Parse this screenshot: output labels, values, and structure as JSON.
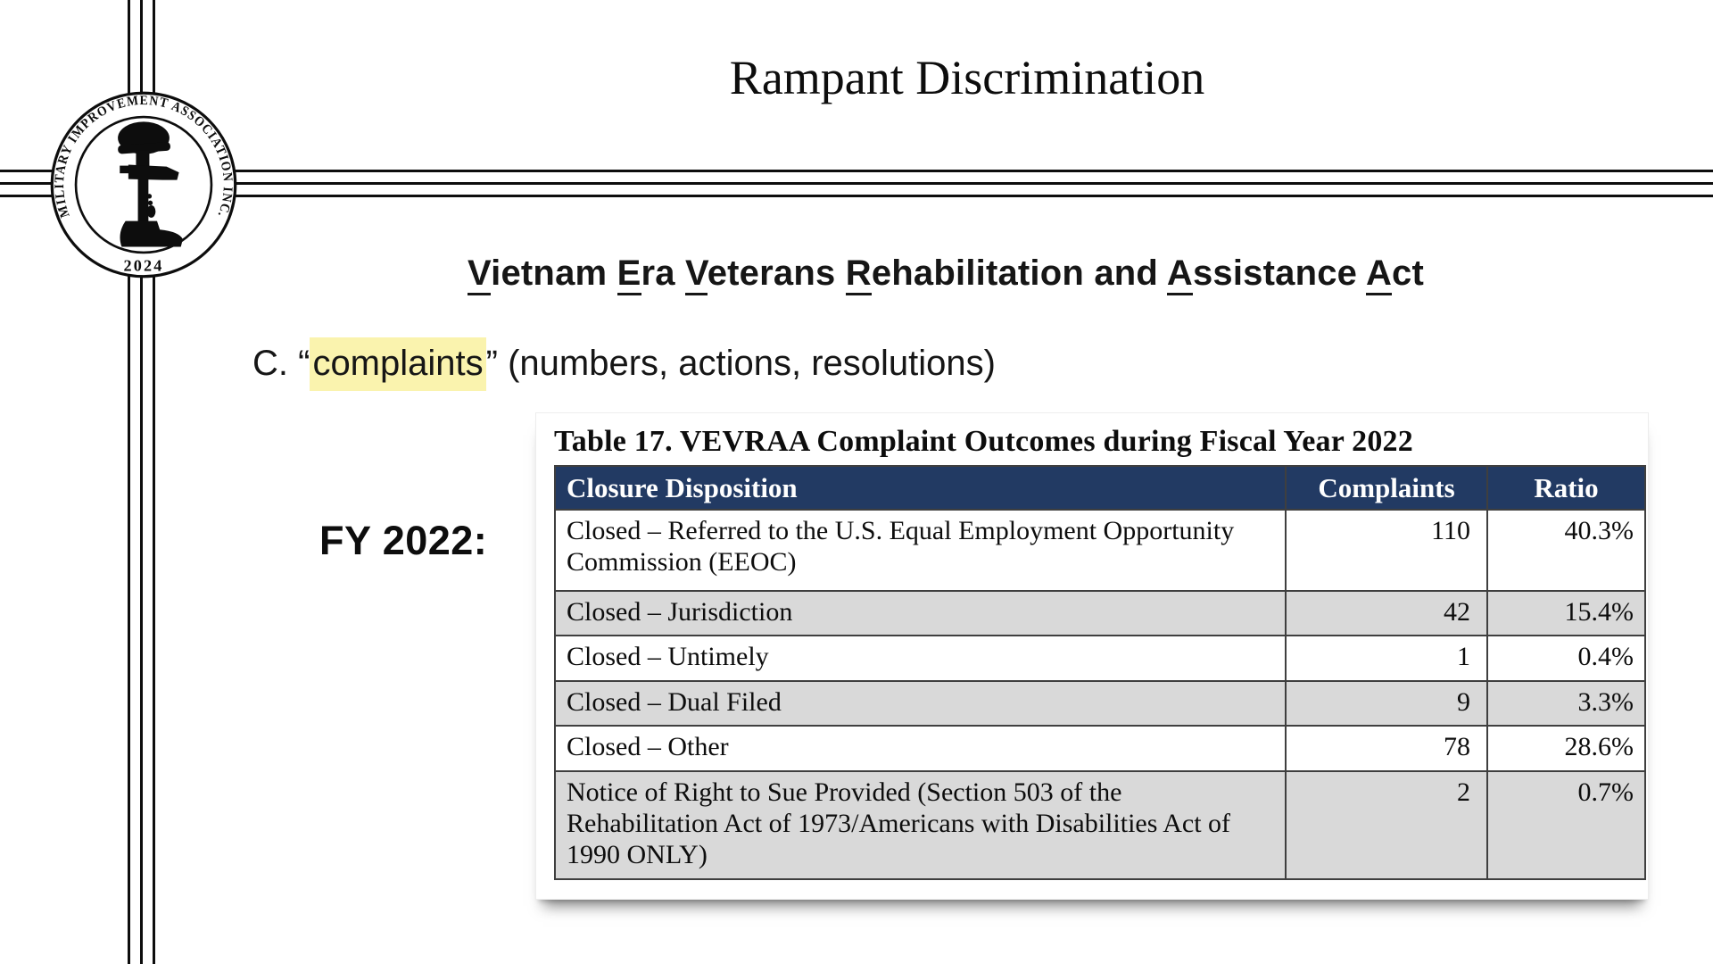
{
  "slide": {
    "title": "Rampant Discrimination",
    "subtitle_segments": [
      {
        "t": "V",
        "u": true
      },
      {
        "t": "ietnam "
      },
      {
        "t": "E",
        "u": true
      },
      {
        "t": "ra "
      },
      {
        "t": "V",
        "u": true
      },
      {
        "t": "eterans "
      },
      {
        "t": "R",
        "u": true
      },
      {
        "t": "ehabilitation and "
      },
      {
        "t": "A",
        "u": true
      },
      {
        "t": "ssistance "
      },
      {
        "t": "A",
        "u": true
      },
      {
        "t": "ct"
      }
    ],
    "complaints_line_segments": [
      {
        "t": "C. “"
      },
      {
        "t": "complaints",
        "hl": true
      },
      {
        "t": "” (numbers, actions, resolutions)"
      }
    ],
    "fy_label": "FY 2022:"
  },
  "logo": {
    "ring_text": "MILITARY IMPROVEMENT ASSOCIATION INC.",
    "year": "2024",
    "icon": "battlefield-cross-icon"
  },
  "table": {
    "title": "Table 17. VEVRAA Complaint Outcomes during Fiscal Year 2022",
    "headers": [
      "Closure Disposition",
      "Complaints",
      "Ratio"
    ],
    "rows": [
      {
        "disposition": "Closed – Referred to the U.S. Equal Employment Opportunity Commission (EEOC)",
        "complaints": "110",
        "ratio": "40.3%",
        "shaded": false,
        "tall": true
      },
      {
        "disposition": "Closed – Jurisdiction",
        "complaints": "42",
        "ratio": "15.4%",
        "shaded": true,
        "tall": false
      },
      {
        "disposition": "Closed – Untimely",
        "complaints": "1",
        "ratio": "0.4%",
        "shaded": false,
        "tall": false
      },
      {
        "disposition": "Closed – Dual Filed",
        "complaints": "9",
        "ratio": "3.3%",
        "shaded": true,
        "tall": false
      },
      {
        "disposition": "Closed – Other",
        "complaints": "78",
        "ratio": "28.6%",
        "shaded": false,
        "tall": false
      },
      {
        "disposition": "Notice of Right to Sue Provided (Section 503 of the Rehabilitation Act of 1973/Americans with Disabilities Act of 1990 ONLY)",
        "complaints": "2",
        "ratio": "0.7%",
        "shaded": true,
        "tall": false
      }
    ]
  },
  "colors": {
    "header_navy": "#223A63",
    "row_gray": "#D9D9D9",
    "highlight_yellow": "#FAF3AE",
    "line_black": "#0D0D0D"
  }
}
